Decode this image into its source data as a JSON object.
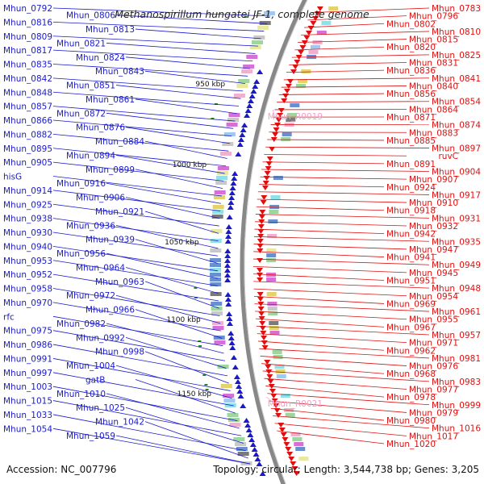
{
  "title": "Methanospirillum hungatei JF-1, complete genome",
  "footer": {
    "accession": "Accession: NC_007796",
    "summary": "Topology: circular; Length: 3,544,738 bp; Genes: 3,205"
  },
  "colors": {
    "left_strand": "#1a1acc",
    "right_strand": "#dd1111",
    "rna": "#f0a0c8",
    "backbone": "#888888",
    "gc_track": "#228822"
  },
  "ticks": [
    "950 kbp",
    "1000 kbp",
    "1050 kbp",
    "1100 kbp",
    "1150 kbp"
  ],
  "left_labels": [
    "Mhun_0792",
    "Mhun_0806",
    "Mhun_0816",
    "Mhun_0813",
    "Mhun_0809",
    "Mhun_0821",
    "Mhun_0817",
    "Mhun_0824",
    "Mhun_0835",
    "Mhun_0843",
    "Mhun_0842",
    "Mhun_0851",
    "Mhun_0848",
    "Mhun_0861",
    "Mhun_0857",
    "Mhun_0872",
    "Mhun_0866",
    "Mhun_0876",
    "Mhun_0882",
    "Mhun_0884",
    "Mhun_0895",
    "Mhun_0894",
    "Mhun_0905",
    "Mhun_0899",
    "hisG",
    "Mhun_0916",
    "Mhun_0914",
    "Mhun_0906",
    "Mhun_0925",
    "Mhun_0921",
    "Mhun_0938",
    "Mhun_0936",
    "Mhun_0930",
    "Mhun_0939",
    "Mhun_0940",
    "Mhun_0956",
    "Mhun_0953",
    "Mhun_0964",
    "Mhun_0952",
    "Mhun_0963",
    "Mhun_0958",
    "Mhun_0972",
    "Mhun_0970",
    "Mhun_0966",
    "rfc",
    "Mhun_0982",
    "Mhun_0975",
    "Mhun_0992",
    "Mhun_0986",
    "Mhun_0998",
    "Mhun_0991",
    "Mhun_1004",
    "Mhun_0997",
    "gatB",
    "Mhun_1003",
    "Mhun_1010",
    "Mhun_1015",
    "Mhun_1025",
    "Mhun_1033",
    "Mhun_1042",
    "Mhun_1054",
    "Mhun_1059"
  ],
  "right_labels": [
    "Mhun_0783",
    "Mhun_0796",
    "Mhun_0802",
    "Mhun_0810",
    "Mhun_0815",
    "Mhun_0820",
    "Mhun_0825",
    "Mhun_0831",
    "Mhun_0836",
    "Mhun_0841",
    "Mhun_0840",
    "Mhun_0856",
    "Mhun_0854",
    "Mhun_0864",
    "Mhun_0871",
    "Mhun_0874",
    "Mhun_0883",
    "Mhun_0885",
    "Mhun_0897",
    "ruvC",
    "Mhun_0891",
    "Mhun_0904",
    "Mhun_0907",
    "Mhun_0924",
    "Mhun_0917",
    "Mhun_0910",
    "Mhun_0918",
    "Mhun_0931",
    "Mhun_0932",
    "Mhun_0942",
    "Mhun_0935",
    "Mhun_0947",
    "Mhun_0941",
    "Mhun_0949",
    "Mhun_0945",
    "Mhun_0951",
    "Mhun_0948",
    "Mhun_0954",
    "Mhun_0969",
    "Mhun_0961",
    "Mhun_0955",
    "Mhun_0967",
    "Mhun_0957",
    "Mhun_0971",
    "Mhun_0962",
    "Mhun_0981",
    "Mhun_0976",
    "Mhun_0968",
    "Mhun_0983",
    "Mhun_0977",
    "Mhun_0978",
    "Mhun_0999",
    "Mhun_0979",
    "Mhun_0980",
    "Mhun_1016",
    "Mhun_1017",
    "Mhun_1020"
  ],
  "rna_labels": [
    "Mhun_R0019",
    "Mhun_R0021"
  ]
}
